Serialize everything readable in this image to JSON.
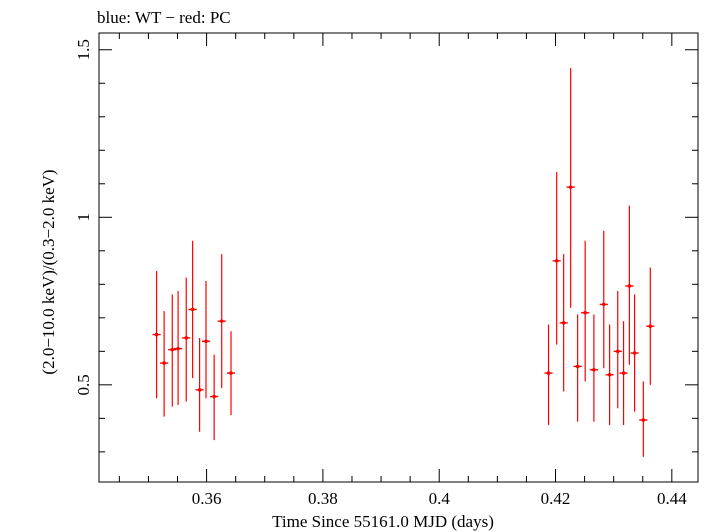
{
  "chart_data": {
    "type": "scatter",
    "title": "blue: WT − red: PC",
    "xlabel": "Time Since 55161.0 MJD (days)",
    "ylabel": "(2.0−10.0 keV)/(0.3−2.0 keV)",
    "xlim": [
      0.3415,
      0.4445
    ],
    "ylim": [
      0.21,
      1.55
    ],
    "x_ticks": [
      0.36,
      0.38,
      0.4,
      0.42,
      0.44
    ],
    "x_tick_labels": [
      "0.36",
      "0.38",
      "0.4",
      "0.42",
      "0.44"
    ],
    "y_ticks": [
      0.5,
      1,
      1.5
    ],
    "y_tick_labels": [
      "0.5",
      "1",
      "1.5"
    ],
    "grid": false,
    "series": [
      {
        "color": "#ff0000",
        "points": [
          {
            "x": 0.3514,
            "y": 0.65,
            "xerr": 0.0007,
            "ylo": 0.46,
            "yhi": 0.84
          },
          {
            "x": 0.3527,
            "y": 0.565,
            "xerr": 0.0007,
            "ylo": 0.405,
            "yhi": 0.72
          },
          {
            "x": 0.3541,
            "y": 0.605,
            "xerr": 0.0007,
            "ylo": 0.435,
            "yhi": 0.77
          },
          {
            "x": 0.3551,
            "y": 0.608,
            "xerr": 0.0007,
            "ylo": 0.44,
            "yhi": 0.78
          },
          {
            "x": 0.3565,
            "y": 0.64,
            "xerr": 0.0007,
            "ylo": 0.45,
            "yhi": 0.82
          },
          {
            "x": 0.3576,
            "y": 0.725,
            "xerr": 0.0007,
            "ylo": 0.52,
            "yhi": 0.93
          },
          {
            "x": 0.3588,
            "y": 0.485,
            "xerr": 0.0007,
            "ylo": 0.36,
            "yhi": 0.64
          },
          {
            "x": 0.3599,
            "y": 0.63,
            "xerr": 0.0007,
            "ylo": 0.46,
            "yhi": 0.81
          },
          {
            "x": 0.3613,
            "y": 0.465,
            "xerr": 0.0007,
            "ylo": 0.335,
            "yhi": 0.59
          },
          {
            "x": 0.3626,
            "y": 0.69,
            "xerr": 0.0007,
            "ylo": 0.49,
            "yhi": 0.89
          },
          {
            "x": 0.3642,
            "y": 0.535,
            "xerr": 0.0007,
            "ylo": 0.41,
            "yhi": 0.66
          },
          {
            "x": 0.4188,
            "y": 0.535,
            "xerr": 0.0007,
            "ylo": 0.38,
            "yhi": 0.68
          },
          {
            "x": 0.4202,
            "y": 0.87,
            "xerr": 0.0007,
            "ylo": 0.62,
            "yhi": 1.135
          },
          {
            "x": 0.4214,
            "y": 0.685,
            "xerr": 0.0007,
            "ylo": 0.48,
            "yhi": 0.89
          },
          {
            "x": 0.4226,
            "y": 1.09,
            "xerr": 0.0007,
            "ylo": 0.73,
            "yhi": 1.445
          },
          {
            "x": 0.4238,
            "y": 0.555,
            "xerr": 0.0007,
            "ylo": 0.39,
            "yhi": 0.71
          },
          {
            "x": 0.4251,
            "y": 0.715,
            "xerr": 0.0007,
            "ylo": 0.51,
            "yhi": 0.93
          },
          {
            "x": 0.4266,
            "y": 0.545,
            "xerr": 0.0007,
            "ylo": 0.39,
            "yhi": 0.71
          },
          {
            "x": 0.4283,
            "y": 0.74,
            "xerr": 0.0007,
            "ylo": 0.55,
            "yhi": 0.96
          },
          {
            "x": 0.4293,
            "y": 0.53,
            "xerr": 0.0007,
            "ylo": 0.38,
            "yhi": 0.68
          },
          {
            "x": 0.4307,
            "y": 0.6,
            "xerr": 0.0007,
            "ylo": 0.43,
            "yhi": 0.78
          },
          {
            "x": 0.4317,
            "y": 0.535,
            "xerr": 0.0007,
            "ylo": 0.38,
            "yhi": 0.69
          },
          {
            "x": 0.4327,
            "y": 0.795,
            "xerr": 0.0007,
            "ylo": 0.56,
            "yhi": 1.035
          },
          {
            "x": 0.4336,
            "y": 0.595,
            "xerr": 0.0007,
            "ylo": 0.42,
            "yhi": 0.77
          },
          {
            "x": 0.4351,
            "y": 0.395,
            "xerr": 0.0007,
            "ylo": 0.285,
            "yhi": 0.51
          },
          {
            "x": 0.4363,
            "y": 0.675,
            "xerr": 0.0007,
            "ylo": 0.5,
            "yhi": 0.85
          }
        ]
      }
    ]
  }
}
